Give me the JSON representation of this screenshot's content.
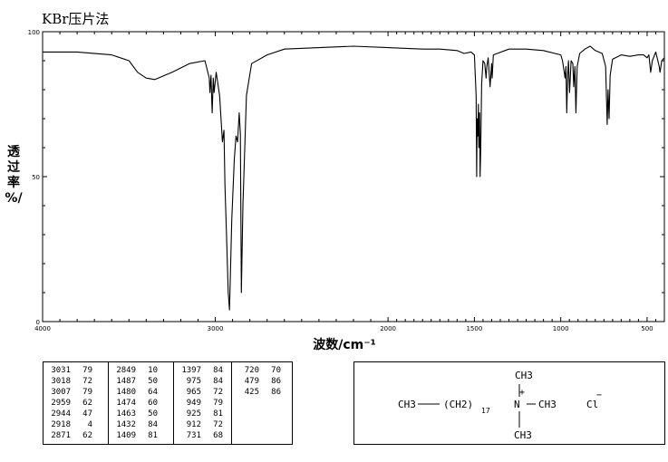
{
  "title": "KBr压片法",
  "ylabel_chars": [
    "透",
    "过",
    "率",
    "%/"
  ],
  "chart_data": {
    "type": "line",
    "title": "KBr压片法",
    "xlabel": "波数/cm⁻¹",
    "ylabel": "透过率%/",
    "xlim": [
      4000,
      400
    ],
    "ylim": [
      0,
      100
    ],
    "x_ticks": [
      4000,
      3000,
      2000,
      1500,
      1000,
      500
    ],
    "x_tick_labels": [
      "4000",
      "3000",
      "2000",
      "1500",
      "1000",
      "500"
    ],
    "y_ticks": [
      0,
      50,
      100
    ],
    "y_tick_labels": [
      "0",
      "50",
      "100"
    ],
    "series": [
      {
        "x": [
          4000,
          3800,
          3600,
          3500,
          3450,
          3400,
          3350,
          3250,
          3150,
          3060,
          3035,
          3031,
          3025,
          3018,
          3012,
          3007,
          2995,
          2975,
          2959,
          2950,
          2944,
          2935,
          2925,
          2918,
          2905,
          2890,
          2880,
          2871,
          2862,
          2855,
          2849,
          2840,
          2820,
          2790,
          2700,
          2600,
          2400,
          2200,
          2000,
          1800,
          1700,
          1600,
          1560,
          1520,
          1500,
          1490,
          1487,
          1484,
          1480,
          1477,
          1474,
          1470,
          1467,
          1463,
          1458,
          1450,
          1440,
          1432,
          1428,
          1420,
          1409,
          1400,
          1397,
          1390,
          1300,
          1200,
          1100,
          1000,
          990,
          980,
          975,
          970,
          965,
          960,
          955,
          949,
          940,
          930,
          925,
          918,
          912,
          905,
          890,
          860,
          830,
          800,
          760,
          740,
          731,
          726,
          720,
          714,
          700,
          650,
          600,
          550,
          520,
          500,
          490,
          479,
          470,
          450,
          430,
          425,
          415,
          400
        ],
        "y": [
          93,
          93,
          92,
          90,
          86,
          84,
          83.5,
          86,
          89,
          90,
          84,
          79,
          85,
          72,
          84,
          79,
          86,
          78,
          62,
          66,
          47,
          30,
          10,
          4,
          35,
          56,
          64,
          62,
          72,
          65,
          10,
          40,
          78,
          89,
          92,
          94,
          94.5,
          95,
          94.5,
          94,
          94,
          93.5,
          92.5,
          93,
          92,
          78,
          50,
          70,
          64,
          75,
          60,
          72,
          50,
          60,
          82,
          90,
          89,
          84,
          88,
          91,
          81,
          89,
          84,
          92,
          94,
          94,
          93.5,
          92,
          90,
          86,
          84,
          88,
          72,
          85,
          90,
          79,
          90,
          89,
          81,
          88,
          72,
          88,
          92.5,
          94,
          95,
          93.5,
          92.5,
          88,
          68,
          80,
          70,
          85,
          90.5,
          92,
          91.5,
          92,
          92,
          91,
          92,
          86,
          90,
          93,
          88,
          86,
          90,
          91
        ]
      }
    ]
  },
  "peak_table": {
    "columns": [
      [
        [
          "3031",
          "79"
        ],
        [
          "3018",
          "72"
        ],
        [
          "3007",
          "79"
        ],
        [
          "2959",
          "62"
        ],
        [
          "2944",
          "47"
        ],
        [
          "2918",
          "4"
        ],
        [
          "2871",
          "62"
        ]
      ],
      [
        [
          "2849",
          "10"
        ],
        [
          "1487",
          "50"
        ],
        [
          "1480",
          "64"
        ],
        [
          "1474",
          "60"
        ],
        [
          "1463",
          "50"
        ],
        [
          "1432",
          "84"
        ],
        [
          "1409",
          "81"
        ]
      ],
      [
        [
          "1397",
          "84"
        ],
        [
          "975",
          "84"
        ],
        [
          "965",
          "72"
        ],
        [
          "949",
          "79"
        ],
        [
          "925",
          "81"
        ],
        [
          "912",
          "72"
        ],
        [
          "731",
          "68"
        ]
      ],
      [
        [
          "720",
          "70"
        ],
        [
          "479",
          "86"
        ],
        [
          "425",
          "86"
        ]
      ]
    ]
  },
  "structure": {
    "top": "CH3",
    "left_ch3": "CH3",
    "chain_open": "(CH2)",
    "chain_sub": "17",
    "nitrogen": "N",
    "charge": "+",
    "right_ch3": "CH3",
    "bottom": "CH3",
    "anion": "Cl",
    "anion_charge": "−"
  }
}
